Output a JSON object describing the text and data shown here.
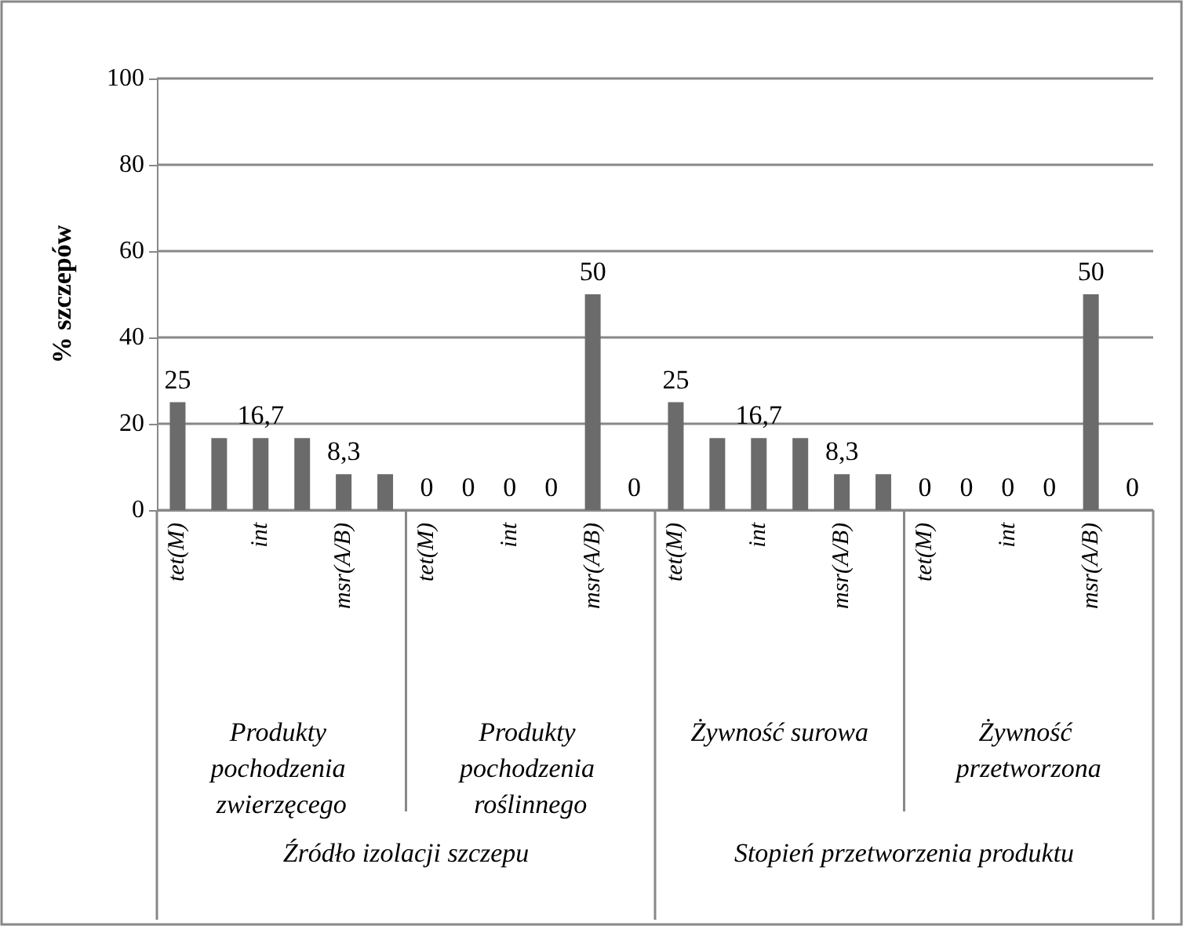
{
  "chart_data": {
    "type": "bar",
    "ylabel": "% szczepów",
    "categories": [
      "tet(M)",
      null,
      "int",
      null,
      "msr(A/B)",
      null,
      "tet(M)",
      null,
      "int",
      null,
      "msr(A/B)",
      null,
      "tet(M)",
      null,
      "int",
      null,
      "msr(A/B)",
      null,
      "tet(M)",
      null,
      "int",
      null,
      "msr(A/B)",
      null
    ],
    "values": [
      25,
      16.7,
      16.7,
      16.7,
      8.3,
      8.3,
      0,
      0,
      0,
      0,
      50,
      0,
      25,
      16.7,
      16.7,
      16.7,
      8.3,
      8.3,
      0,
      0,
      0,
      0,
      50,
      0
    ],
    "value_labels": [
      "25",
      null,
      "16,7",
      null,
      "8,3",
      null,
      "0",
      "0",
      "0",
      "0",
      "50",
      "0",
      "25",
      null,
      "16,7",
      null,
      "8,3",
      null,
      "0",
      "0",
      "0",
      "0",
      "50",
      "0"
    ],
    "color": "#6b6b6b",
    "ylim": [
      0,
      100
    ],
    "yticks": [
      0,
      20,
      40,
      60,
      80,
      100
    ],
    "grid": "y",
    "annotations": [
      "Produkty pochodzenia zwierzęcego",
      "Produkty pochodzenia roślinnego",
      "Żywność surowa",
      "Żywność przetworzona",
      "Źródło izolacji szczepu",
      "Stopień przetworzenia produktu"
    ]
  }
}
